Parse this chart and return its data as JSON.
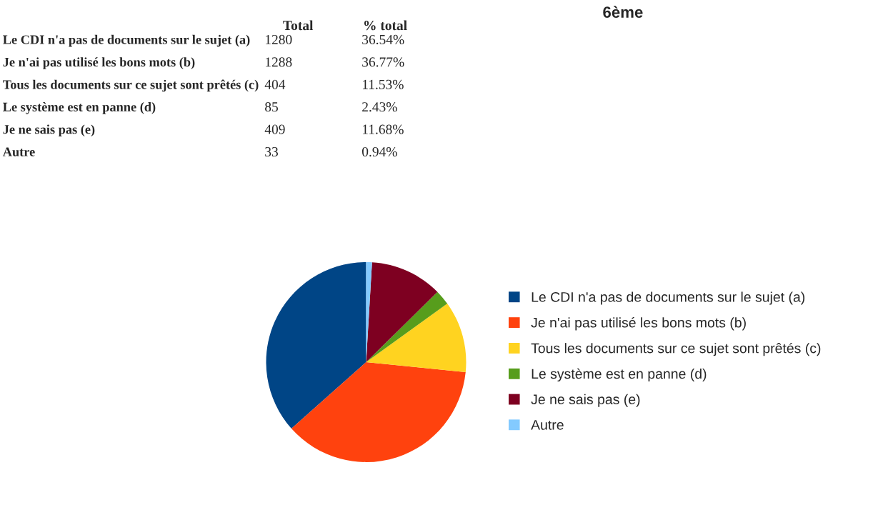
{
  "chart_data": [
    {
      "type": "other",
      "title": "6ème",
      "annotations": [
        "Total",
        "% total",
        "Le CDI n'a pas de documents sur le sujet (a)",
        "1280",
        "36.54%",
        "Je n'ai pas utilisé les bons mots (b)",
        "1288",
        "36.77%",
        "Tous les documents sur ce sujet sont prêtés (c)",
        "404",
        "11.53%",
        "Le système est en panne (d)",
        "85",
        "2.43%",
        "Je ne sais pas (e)",
        "409",
        "11.68%",
        "Autre",
        "33",
        "0.94%"
      ]
    },
    {
      "type": "pie",
      "categories": [
        "Le CDI n'a pas de documents sur le sujet (a)",
        "Je n'ai pas utilisé les bons mots (b)",
        "Tous les documents sur ce sujet sont prêtés (c)",
        "Le système est en panne (d)",
        "Je ne sais pas (e)",
        "Autre"
      ],
      "values": [
        36.54,
        36.77,
        11.53,
        2.43,
        11.68,
        0.94
      ],
      "colors": [
        "#004586",
        "#ff420e",
        "#ffd320",
        "#579d1c",
        "#7e0021",
        "#83caff"
      ],
      "legend": "right"
    }
  ]
}
